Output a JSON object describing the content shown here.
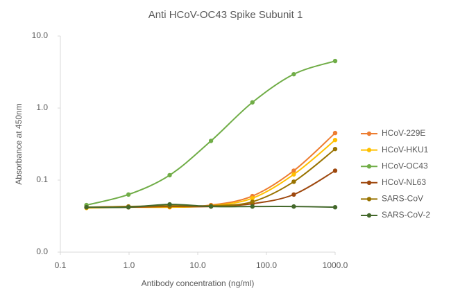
{
  "chart_data": {
    "type": "line",
    "title": "Anti HCoV-OC43 Spike Subunit 1",
    "x_label": "Antibody concentration (ng/ml)",
    "y_label": "Absorbance at 450nm",
    "x": [
      0.24,
      0.98,
      3.9,
      15.6,
      62.5,
      250,
      1000
    ],
    "series": [
      {
        "name": "HCoV-229E",
        "color": "#ed7d31",
        "values": [
          0.042,
          0.043,
          0.043,
          0.045,
          0.06,
          0.135,
          0.45
        ]
      },
      {
        "name": "HCoV-HKU1",
        "color": "#ffc000",
        "values": [
          0.041,
          0.042,
          0.042,
          0.044,
          0.056,
          0.12,
          0.36
        ]
      },
      {
        "name": "HCoV-OC43",
        "color": "#70ad47",
        "values": [
          0.045,
          0.063,
          0.117,
          0.35,
          1.2,
          2.95,
          4.5
        ]
      },
      {
        "name": "HCoV-NL63",
        "color": "#9e480e",
        "values": [
          0.042,
          0.042,
          0.043,
          0.043,
          0.047,
          0.063,
          0.135
        ]
      },
      {
        "name": "SARS-CoV",
        "color": "#997300",
        "values": [
          0.042,
          0.043,
          0.044,
          0.044,
          0.05,
          0.095,
          0.27
        ]
      },
      {
        "name": "SARS-CoV-2",
        "color": "#43682b",
        "values": [
          0.042,
          0.042,
          0.046,
          0.043,
          0.043,
          0.043,
          0.042
        ]
      }
    ],
    "xscale": "log",
    "yscale": "log",
    "xlim": [
      0.1,
      1000
    ],
    "xticks": [
      0.1,
      {
        "value": 1,
        "label": "1.0"
      },
      {
        "value": 10,
        "label": "10.0"
      },
      {
        "value": 100,
        "label": "100.0"
      },
      {
        "value": 1000,
        "label": "1000.0"
      }
    ],
    "ylim": [
      0.01,
      10
    ],
    "yticks": [
      {
        "value": 0.01,
        "label": "0.0"
      },
      0.1,
      {
        "value": 1,
        "label": "1.0"
      },
      {
        "value": 10,
        "label": "10.0"
      }
    ],
    "grid": false,
    "legend": "right"
  }
}
